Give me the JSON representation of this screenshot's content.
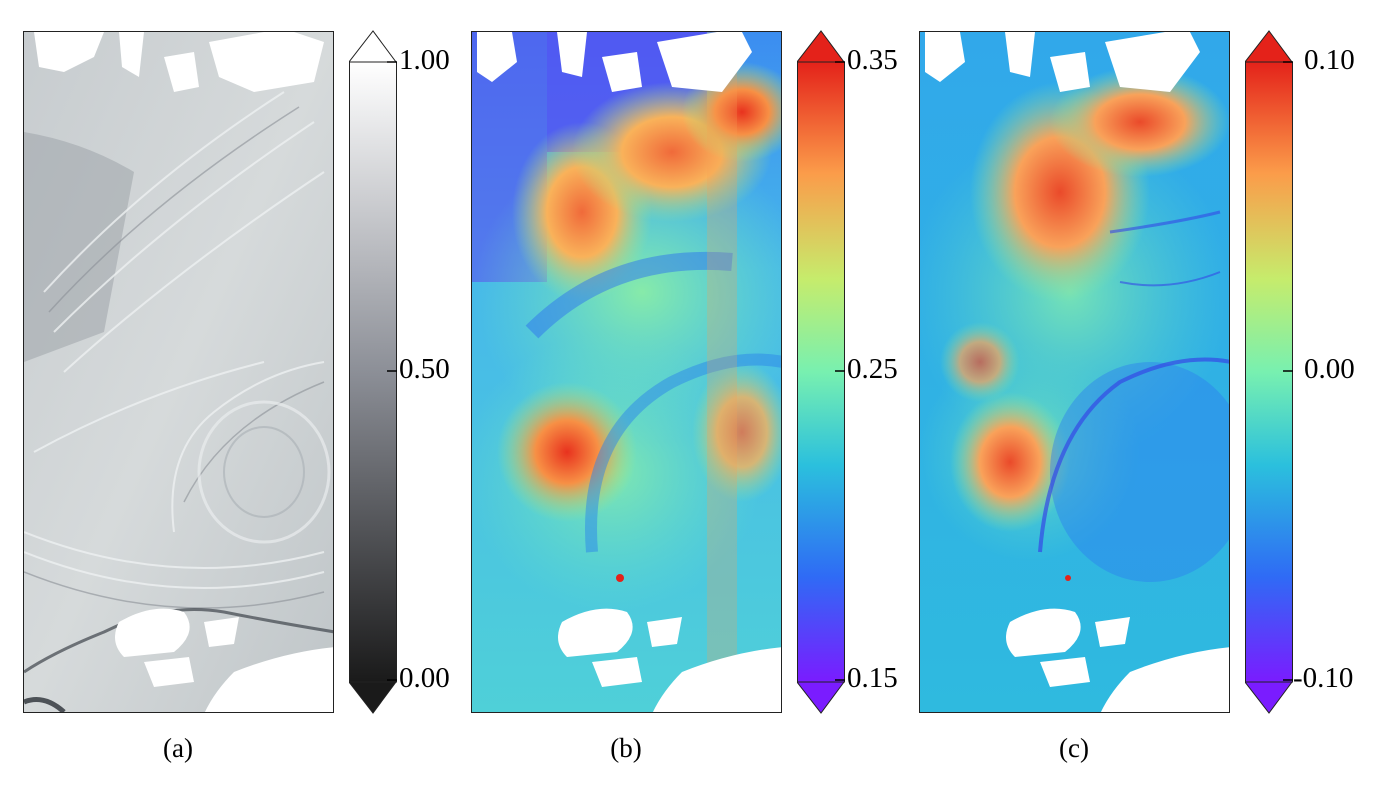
{
  "panels": [
    {
      "id": "a",
      "caption": "(a)",
      "colormap": "grayscale",
      "colors": [
        "#1a1a1a",
        "#8c8f97",
        "#ffffff"
      ],
      "ticks": [
        "1.00",
        "0.50",
        "0.00"
      ]
    },
    {
      "id": "b",
      "caption": "(b)",
      "colormap": "rainbow",
      "colors": [
        "#7a1cff",
        "#2f6bf5",
        "#2bc0dd",
        "#78f0b0",
        "#c6ec6c",
        "#fb9c4a",
        "#e4221a"
      ],
      "ticks": [
        "0.35",
        "0.25",
        "0.15"
      ]
    },
    {
      "id": "c",
      "caption": "(c)",
      "colormap": "rainbow",
      "colors": [
        "#7a1cff",
        "#2f6bf5",
        "#2bc0dd",
        "#78f0b0",
        "#c6ec6c",
        "#fb9c4a",
        "#e4221a"
      ],
      "ticks": [
        "0.10",
        "0.00",
        "-0.10"
      ]
    }
  ]
}
